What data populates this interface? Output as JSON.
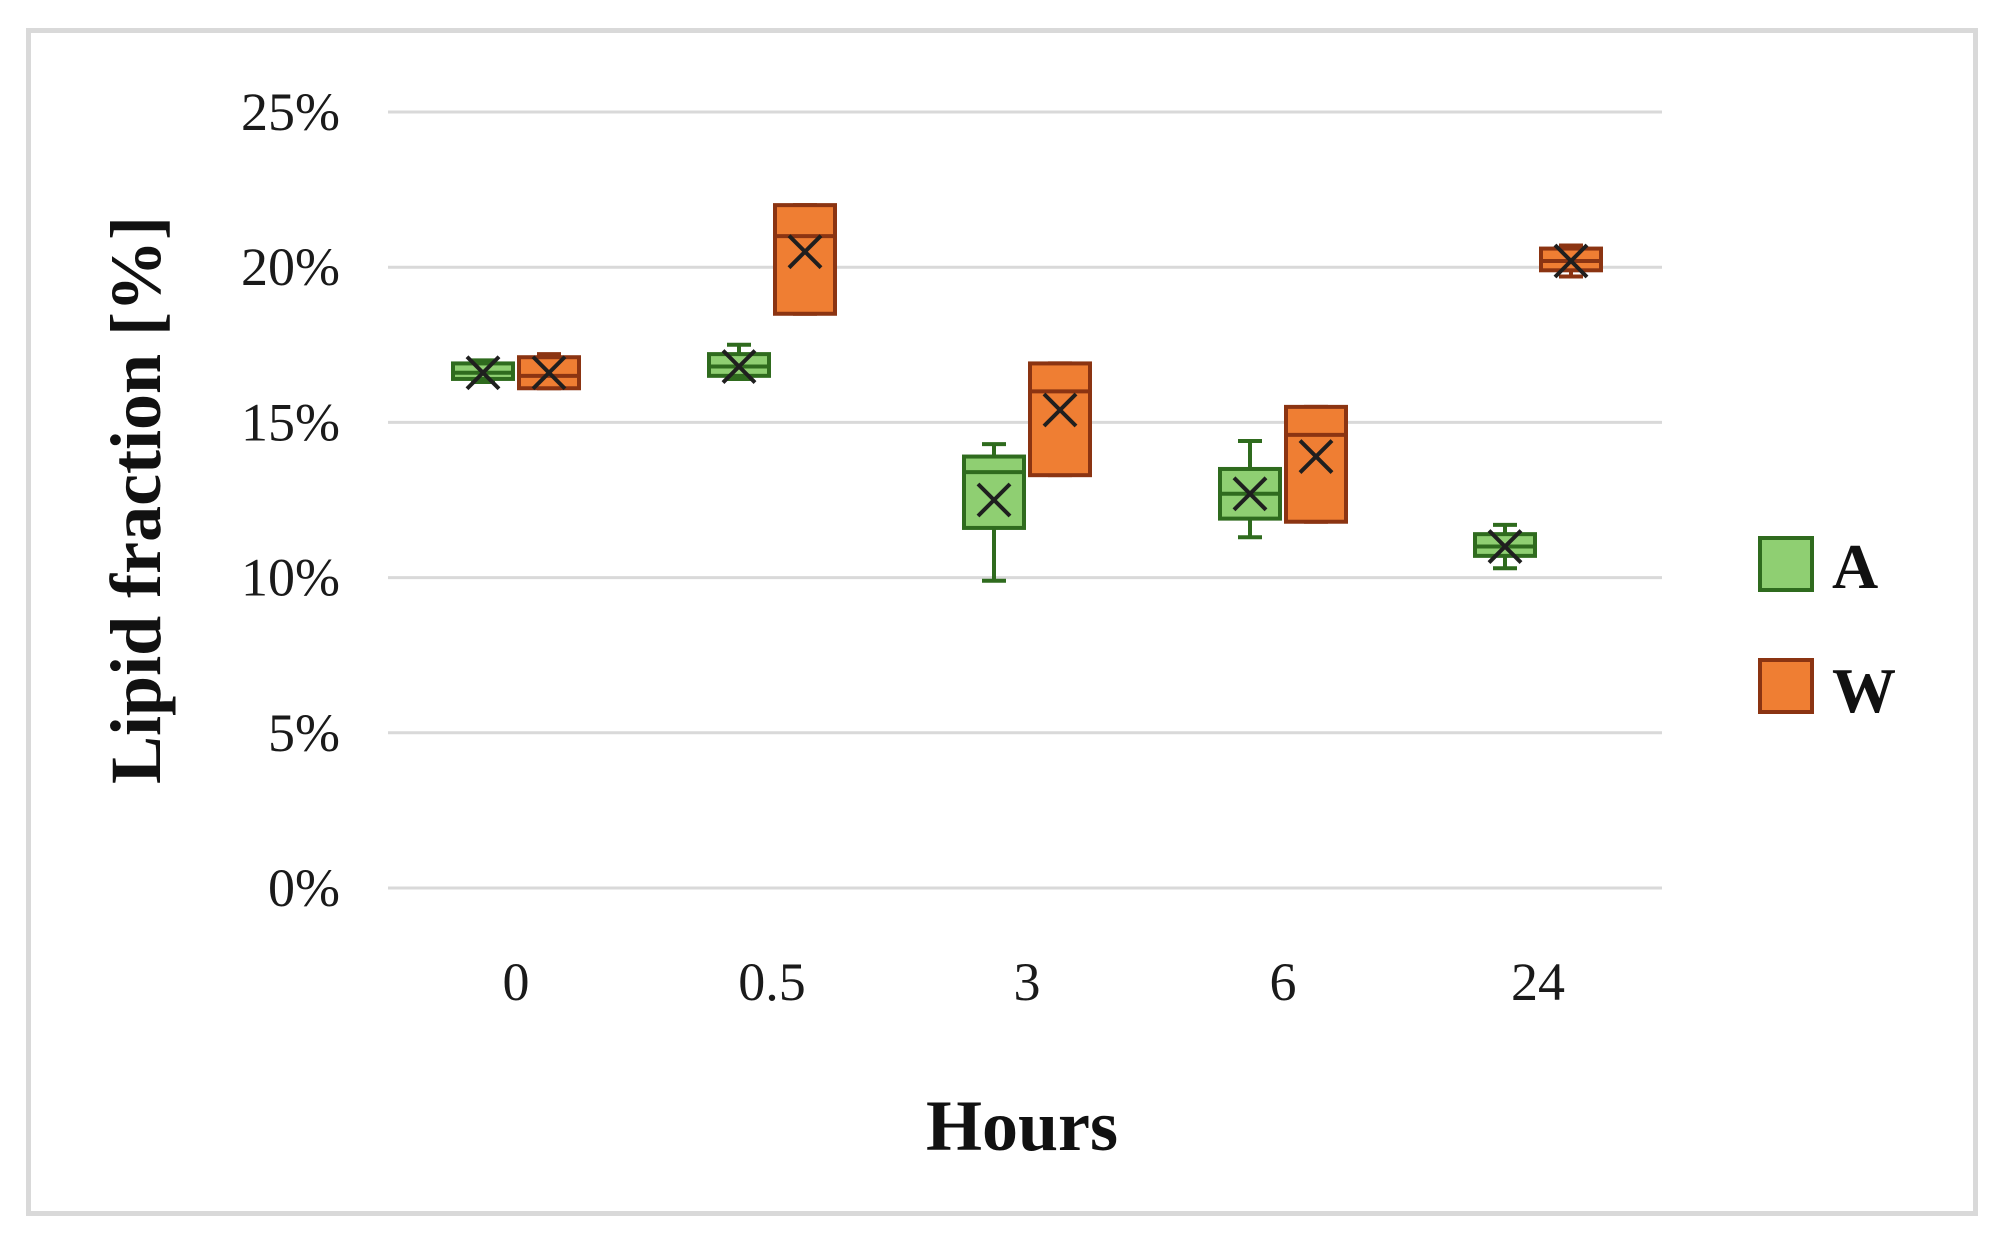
{
  "chart_data": {
    "type": "box",
    "xlabel": "Hours",
    "ylabel": "Lipid fraction [%]",
    "categories": [
      "0",
      "0.5",
      "3",
      "6",
      "24"
    ],
    "y_ticks": [
      "0%",
      "5%",
      "10%",
      "15%",
      "20%",
      "25%"
    ],
    "ylim": [
      0,
      25
    ],
    "grid": true,
    "legend_position": "right",
    "series": [
      {
        "name": "A",
        "color": "#8fcf72",
        "edge_color": "#2f6b1e",
        "boxes": [
          {
            "min": 16.3,
            "q1": 16.4,
            "median": 16.6,
            "q3": 16.9,
            "max": 17.0,
            "mean": 16.6
          },
          {
            "min": 16.4,
            "q1": 16.5,
            "median": 16.8,
            "q3": 17.2,
            "max": 17.5,
            "mean": 16.8
          },
          {
            "min": 9.9,
            "q1": 11.6,
            "median": 13.4,
            "q3": 13.9,
            "max": 14.3,
            "mean": 12.5
          },
          {
            "min": 11.3,
            "q1": 11.9,
            "median": 12.7,
            "q3": 13.5,
            "max": 14.4,
            "mean": 12.7
          },
          {
            "min": 10.3,
            "q1": 10.7,
            "median": 11.0,
            "q3": 11.4,
            "max": 11.7,
            "mean": 11.0
          }
        ]
      },
      {
        "name": "W",
        "color": "#ef7e33",
        "edge_color": "#8b3412",
        "boxes": [
          {
            "min": 16.1,
            "q1": 16.1,
            "median": 16.5,
            "q3": 17.1,
            "max": 17.2,
            "mean": 16.6
          },
          {
            "min": 18.5,
            "q1": 18.5,
            "median": 21.0,
            "q3": 22.0,
            "max": 22.0,
            "mean": 20.5
          },
          {
            "min": 13.3,
            "q1": 13.3,
            "median": 16.0,
            "q3": 16.9,
            "max": 16.9,
            "mean": 15.4
          },
          {
            "min": 11.8,
            "q1": 11.8,
            "median": 14.6,
            "q3": 15.5,
            "max": 15.5,
            "mean": 13.9
          },
          {
            "min": 19.7,
            "q1": 19.9,
            "median": 20.2,
            "q3": 20.6,
            "max": 20.7,
            "mean": 20.2
          }
        ]
      }
    ]
  }
}
